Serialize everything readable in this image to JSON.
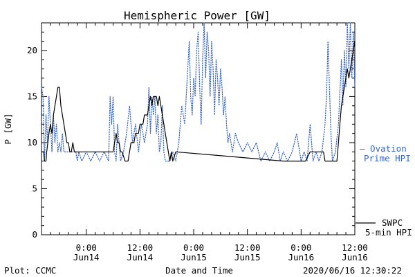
{
  "chart_data": {
    "type": "line",
    "title": "Hemispheric Power [GW]",
    "xlabel": "Date and Time",
    "ylabel": "P [GW]",
    "ylim": [
      0,
      23
    ],
    "xlim_hours_label_note": "",
    "yticks": [
      0,
      5,
      10,
      15,
      20
    ],
    "xticks": [
      {
        "time": "0:00",
        "date": "Jun14"
      },
      {
        "time": "12:00",
        "date": "Jun14"
      },
      {
        "time": "0:00",
        "date": "Jun15"
      },
      {
        "time": "12:00",
        "date": "Jun15"
      },
      {
        "time": "0:00",
        "date": "Jun16"
      },
      {
        "time": "12:00",
        "date": "Jun16"
      }
    ],
    "x_axis": {
      "start": "2020-06-13T14:00",
      "end": "2020-06-16T12:00",
      "tick_hours": [
        10,
        22,
        34,
        46,
        58,
        70
      ]
    },
    "series": [
      {
        "name": "SWPC 5-min HPI",
        "style": "solid",
        "color": "#000000",
        "points": [
          [
            "2020-06-13T14:00",
            9
          ],
          [
            "2020-06-13T14:30",
            9
          ],
          [
            "2020-06-13T14:40",
            8
          ],
          [
            "2020-06-13T15:00",
            8
          ],
          [
            "2020-06-13T15:10",
            9
          ],
          [
            "2020-06-13T15:40",
            11
          ],
          [
            "2020-06-13T16:00",
            12
          ],
          [
            "2020-06-13T16:20",
            11
          ],
          [
            "2020-06-13T16:40",
            13
          ],
          [
            "2020-06-13T17:00",
            14
          ],
          [
            "2020-06-13T17:20",
            15
          ],
          [
            "2020-06-13T17:40",
            16
          ],
          [
            "2020-06-13T18:00",
            16
          ],
          [
            "2020-06-13T18:20",
            14
          ],
          [
            "2020-06-13T18:40",
            13
          ],
          [
            "2020-06-13T19:00",
            12
          ],
          [
            "2020-06-13T19:20",
            11
          ],
          [
            "2020-06-13T19:40",
            10
          ],
          [
            "2020-06-13T20:00",
            10
          ],
          [
            "2020-06-13T20:20",
            9
          ],
          [
            "2020-06-13T20:40",
            9
          ],
          [
            "2020-06-13T21:00",
            10
          ],
          [
            "2020-06-13T21:20",
            9
          ],
          [
            "2020-06-13T22:00",
            9
          ],
          [
            "2020-06-14T00:00",
            9
          ],
          [
            "2020-06-14T02:00",
            9
          ],
          [
            "2020-06-14T04:00",
            9
          ],
          [
            "2020-06-14T06:00",
            9
          ],
          [
            "2020-06-14T06:20",
            10
          ],
          [
            "2020-06-14T06:40",
            11
          ],
          [
            "2020-06-14T07:00",
            10
          ],
          [
            "2020-06-14T07:20",
            10
          ],
          [
            "2020-06-14T07:40",
            9
          ],
          [
            "2020-06-14T08:00",
            9
          ],
          [
            "2020-06-14T08:40",
            8
          ],
          [
            "2020-06-14T09:20",
            8
          ],
          [
            "2020-06-14T09:40",
            9
          ],
          [
            "2020-06-14T10:00",
            10
          ],
          [
            "2020-06-14T10:40",
            10
          ],
          [
            "2020-06-14T11:00",
            11
          ],
          [
            "2020-06-14T11:40",
            11
          ],
          [
            "2020-06-14T12:00",
            12
          ],
          [
            "2020-06-14T12:40",
            12
          ],
          [
            "2020-06-14T13:00",
            13
          ],
          [
            "2020-06-14T13:40",
            13
          ],
          [
            "2020-06-14T14:00",
            14
          ],
          [
            "2020-06-14T14:20",
            15
          ],
          [
            "2020-06-14T14:40",
            14
          ],
          [
            "2020-06-14T15:00",
            15
          ],
          [
            "2020-06-14T15:40",
            15
          ],
          [
            "2020-06-14T16:00",
            14
          ],
          [
            "2020-06-14T16:20",
            15
          ],
          [
            "2020-06-14T16:40",
            14
          ],
          [
            "2020-06-14T17:00",
            13
          ],
          [
            "2020-06-14T17:20",
            12
          ],
          [
            "2020-06-14T17:40",
            11
          ],
          [
            "2020-06-14T18:00",
            10
          ],
          [
            "2020-06-14T18:20",
            9
          ],
          [
            "2020-06-14T18:40",
            8
          ],
          [
            "2020-06-14T19:00",
            9
          ],
          [
            "2020-06-14T19:20",
            8
          ],
          [
            "2020-06-14T20:00",
            9
          ],
          [
            "2020-06-15T08:00",
            8.5
          ],
          [
            "2020-06-15T20:00",
            8
          ],
          [
            "2020-06-16T01:00",
            8
          ],
          [
            "2020-06-16T02:00",
            9
          ],
          [
            "2020-06-16T05:00",
            9
          ],
          [
            "2020-06-16T05:20",
            8
          ],
          [
            "2020-06-16T08:00",
            8
          ],
          [
            "2020-06-16T08:20",
            10
          ],
          [
            "2020-06-16T08:40",
            12
          ],
          [
            "2020-06-16T09:00",
            14
          ],
          [
            "2020-06-16T09:20",
            15
          ],
          [
            "2020-06-16T09:40",
            16
          ],
          [
            "2020-06-16T10:00",
            17
          ],
          [
            "2020-06-16T10:20",
            18
          ],
          [
            "2020-06-16T10:40",
            17
          ],
          [
            "2020-06-16T11:00",
            18
          ],
          [
            "2020-06-16T11:20",
            19
          ],
          [
            "2020-06-16T11:40",
            20
          ],
          [
            "2020-06-16T12:00",
            21
          ]
        ]
      },
      {
        "name": "Ovation Prime HPI",
        "style": "dotted",
        "color": "#3a66c9",
        "points": [
          [
            "2020-06-13T14:00",
            16
          ],
          [
            "2020-06-13T14:20",
            15
          ],
          [
            "2020-06-13T14:40",
            8
          ],
          [
            "2020-06-13T15:00",
            13
          ],
          [
            "2020-06-13T15:20",
            10
          ],
          [
            "2020-06-13T15:40",
            15
          ],
          [
            "2020-06-13T16:00",
            12
          ],
          [
            "2020-06-13T16:20",
            9
          ],
          [
            "2020-06-13T16:40",
            13
          ],
          [
            "2020-06-13T17:00",
            10
          ],
          [
            "2020-06-13T17:20",
            12
          ],
          [
            "2020-06-13T17:40",
            9
          ],
          [
            "2020-06-13T18:00",
            10
          ],
          [
            "2020-06-13T18:20",
            9
          ],
          [
            "2020-06-13T18:40",
            11
          ],
          [
            "2020-06-13T19:00",
            9
          ],
          [
            "2020-06-13T19:40",
            9
          ],
          [
            "2020-06-13T20:20",
            9
          ],
          [
            "2020-06-13T21:00",
            9
          ],
          [
            "2020-06-13T21:40",
            9
          ],
          [
            "2020-06-13T22:00",
            8
          ],
          [
            "2020-06-13T22:20",
            9
          ],
          [
            "2020-06-13T23:00",
            8
          ],
          [
            "2020-06-14T00:00",
            9
          ],
          [
            "2020-06-14T01:00",
            8
          ],
          [
            "2020-06-14T02:00",
            9
          ],
          [
            "2020-06-14T03:00",
            8
          ],
          [
            "2020-06-14T04:00",
            9
          ],
          [
            "2020-06-14T05:00",
            8
          ],
          [
            "2020-06-14T05:20",
            15
          ],
          [
            "2020-06-14T05:40",
            12
          ],
          [
            "2020-06-14T06:00",
            15
          ],
          [
            "2020-06-14T06:20",
            9
          ],
          [
            "2020-06-14T06:40",
            8
          ],
          [
            "2020-06-14T07:00",
            12
          ],
          [
            "2020-06-14T07:40",
            8
          ],
          [
            "2020-06-14T08:20",
            9
          ],
          [
            "2020-06-14T09:00",
            11
          ],
          [
            "2020-06-14T09:40",
            14
          ],
          [
            "2020-06-14T10:20",
            10
          ],
          [
            "2020-06-14T11:00",
            12
          ],
          [
            "2020-06-14T11:40",
            9
          ],
          [
            "2020-06-14T12:20",
            12
          ],
          [
            "2020-06-14T13:00",
            10
          ],
          [
            "2020-06-14T13:40",
            12
          ],
          [
            "2020-06-14T14:00",
            16
          ],
          [
            "2020-06-14T14:20",
            11
          ],
          [
            "2020-06-14T14:40",
            15
          ],
          [
            "2020-06-14T15:00",
            13
          ],
          [
            "2020-06-14T15:20",
            15
          ],
          [
            "2020-06-14T15:40",
            11
          ],
          [
            "2020-06-14T16:00",
            13
          ],
          [
            "2020-06-14T16:20",
            9
          ],
          [
            "2020-06-14T16:40",
            10
          ],
          [
            "2020-06-14T17:00",
            14
          ],
          [
            "2020-06-14T17:20",
            9
          ],
          [
            "2020-06-14T17:40",
            8
          ],
          [
            "2020-06-14T18:00",
            8
          ],
          [
            "2020-06-14T18:40",
            8
          ],
          [
            "2020-06-14T19:20",
            9
          ],
          [
            "2020-06-14T20:00",
            8
          ],
          [
            "2020-06-14T20:40",
            10
          ],
          [
            "2020-06-14T21:20",
            14
          ],
          [
            "2020-06-14T22:00",
            12
          ],
          [
            "2020-06-14T22:40",
            18
          ],
          [
            "2020-06-14T23:00",
            21
          ],
          [
            "2020-06-14T23:20",
            15
          ],
          [
            "2020-06-14T23:40",
            13
          ],
          [
            "2020-06-15T00:00",
            17
          ],
          [
            "2020-06-15T00:20",
            15
          ],
          [
            "2020-06-15T00:40",
            20
          ],
          [
            "2020-06-15T01:00",
            22
          ],
          [
            "2020-06-15T01:20",
            16
          ],
          [
            "2020-06-15T01:40",
            12
          ],
          [
            "2020-06-15T02:00",
            19
          ],
          [
            "2020-06-15T02:20",
            23
          ],
          [
            "2020-06-15T02:40",
            17
          ],
          [
            "2020-06-15T03:00",
            22
          ],
          [
            "2020-06-15T03:20",
            20
          ],
          [
            "2020-06-15T03:40",
            15
          ],
          [
            "2020-06-15T04:00",
            21
          ],
          [
            "2020-06-15T04:20",
            18
          ],
          [
            "2020-06-15T04:40",
            13
          ],
          [
            "2020-06-15T05:00",
            19
          ],
          [
            "2020-06-15T05:20",
            17
          ],
          [
            "2020-06-15T05:40",
            14
          ],
          [
            "2020-06-15T06:00",
            18
          ],
          [
            "2020-06-15T06:20",
            16
          ],
          [
            "2020-06-15T06:40",
            13
          ],
          [
            "2020-06-15T07:00",
            15
          ],
          [
            "2020-06-15T07:20",
            12
          ],
          [
            "2020-06-15T07:40",
            10
          ],
          [
            "2020-06-15T08:00",
            11
          ],
          [
            "2020-06-15T08:40",
            9
          ],
          [
            "2020-06-15T09:20",
            11
          ],
          [
            "2020-06-15T10:00",
            10
          ],
          [
            "2020-06-15T11:00",
            9
          ],
          [
            "2020-06-15T12:00",
            10
          ],
          [
            "2020-06-15T13:00",
            9
          ],
          [
            "2020-06-15T14:00",
            10
          ],
          [
            "2020-06-15T15:00",
            8
          ],
          [
            "2020-06-15T16:00",
            9
          ],
          [
            "2020-06-15T17:00",
            8
          ],
          [
            "2020-06-15T18:00",
            9
          ],
          [
            "2020-06-15T18:40",
            10
          ],
          [
            "2020-06-15T19:20",
            8
          ],
          [
            "2020-06-15T20:00",
            9
          ],
          [
            "2020-06-15T21:00",
            8
          ],
          [
            "2020-06-15T22:00",
            9
          ],
          [
            "2020-06-15T23:00",
            11
          ],
          [
            "2020-06-16T00:00",
            8
          ],
          [
            "2020-06-16T00:40",
            9
          ],
          [
            "2020-06-16T01:20",
            8
          ],
          [
            "2020-06-16T02:00",
            12
          ],
          [
            "2020-06-16T02:40",
            8
          ],
          [
            "2020-06-16T03:20",
            9
          ],
          [
            "2020-06-16T04:00",
            8
          ],
          [
            "2020-06-16T04:40",
            9
          ],
          [
            "2020-06-16T05:20",
            12
          ],
          [
            "2020-06-16T05:40",
            15
          ],
          [
            "2020-06-16T06:00",
            21
          ],
          [
            "2020-06-16T06:20",
            16
          ],
          [
            "2020-06-16T06:40",
            11
          ],
          [
            "2020-06-16T07:00",
            8
          ],
          [
            "2020-06-16T07:40",
            9
          ],
          [
            "2020-06-16T08:20",
            12
          ],
          [
            "2020-06-16T09:00",
            19
          ],
          [
            "2020-06-16T09:20",
            14
          ],
          [
            "2020-06-16T09:40",
            20
          ],
          [
            "2020-06-16T10:00",
            16
          ],
          [
            "2020-06-16T10:20",
            23
          ],
          [
            "2020-06-16T10:40",
            18
          ],
          [
            "2020-06-16T11:00",
            23
          ],
          [
            "2020-06-16T11:20",
            17
          ],
          [
            "2020-06-16T11:40",
            22
          ],
          [
            "2020-06-16T12:00",
            16
          ]
        ]
      }
    ]
  },
  "legend": {
    "ovation_line1": "– Ovation",
    "ovation_line2": "Prime HPI",
    "swpc_line1": "SWPC",
    "swpc_line2": "5-min HPI"
  },
  "footer": {
    "plot_label": "Plot: CCMC",
    "timestamp": "2020/06/16 12:30:22"
  },
  "colors": {
    "ovation": "#3a66c9",
    "swpc": "#000000"
  }
}
